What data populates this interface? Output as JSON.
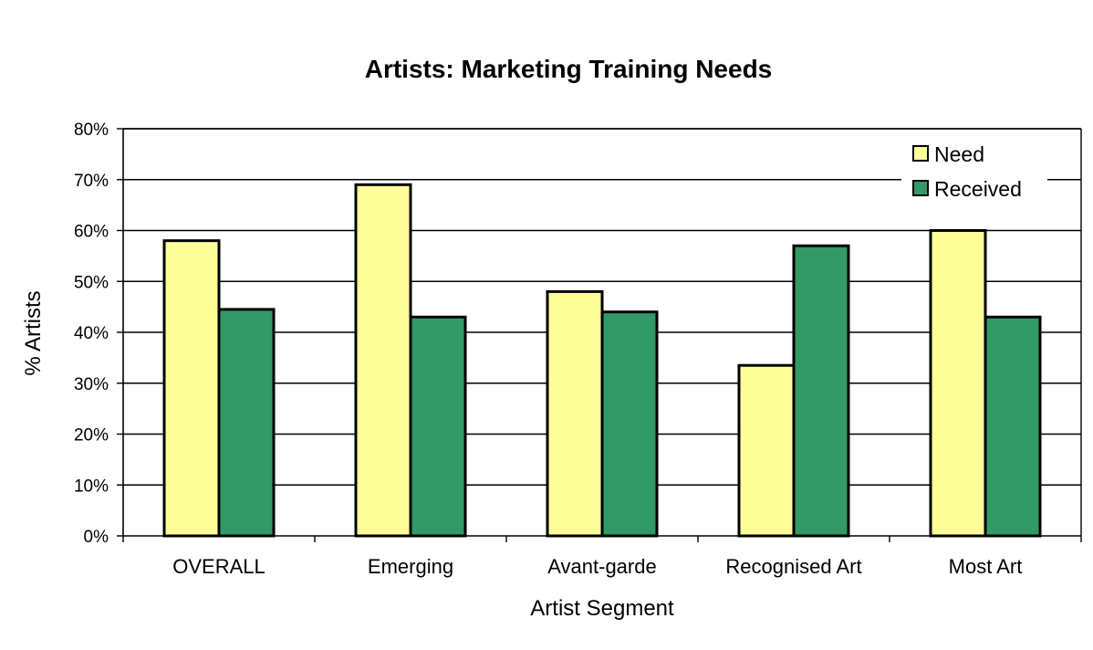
{
  "chart_data": {
    "type": "bar",
    "title": "Artists: Marketing Training Needs",
    "xlabel": "Artist Segment",
    "ylabel": "% Artists",
    "categories": [
      "OVERALL",
      "Emerging",
      "Avant-garde",
      "Recognised Art",
      "Most Art"
    ],
    "series": [
      {
        "name": "Need",
        "values": [
          58,
          69,
          48,
          33.5,
          60
        ],
        "color": "#ffff99"
      },
      {
        "name": "Received",
        "values": [
          44.5,
          43,
          44,
          57,
          43
        ],
        "color": "#339966"
      }
    ],
    "ylim": [
      0,
      80
    ],
    "yticks": [
      0,
      10,
      20,
      30,
      40,
      50,
      60,
      70,
      80
    ],
    "ytick_labels": [
      "0%",
      "10%",
      "20%",
      "30%",
      "40%",
      "50%",
      "60%",
      "70%",
      "80%"
    ],
    "grid": true,
    "legend_position": "top-right",
    "colors": {
      "need": "#ffff99",
      "received": "#339966",
      "bar_outline": "#000000",
      "grid": "#000000"
    }
  }
}
